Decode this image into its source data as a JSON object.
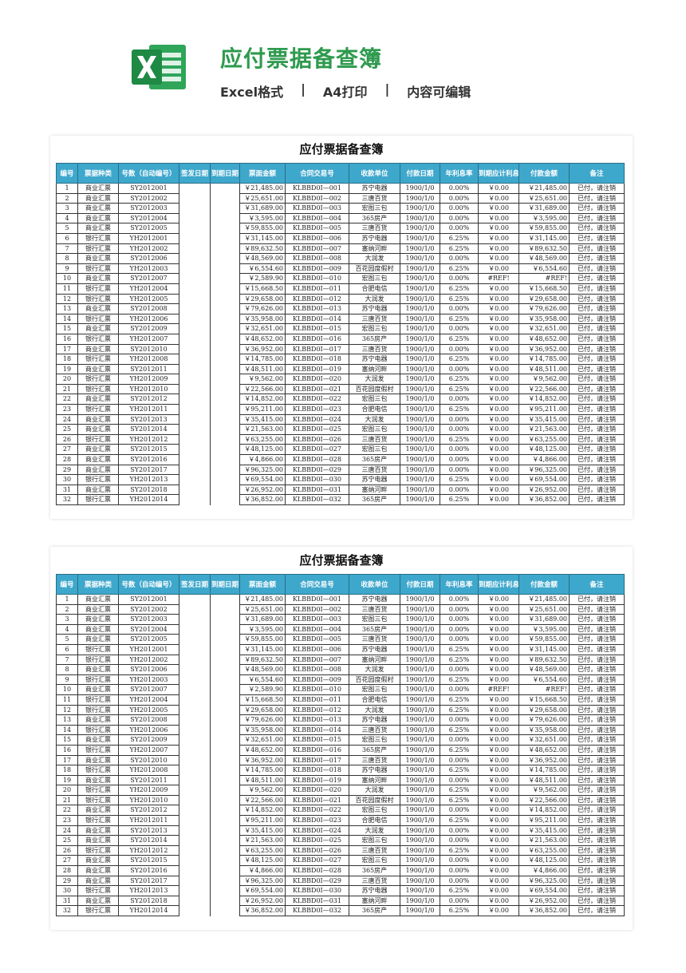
{
  "header": {
    "title": "应付票据备查簿",
    "subtitle": [
      "Excel格式",
      "|",
      "A4打印",
      "|",
      "内容可编辑"
    ]
  },
  "tables": [
    {
      "title": "应付票据备查簿",
      "headers": [
        "编号",
        "票据种类",
        "号数（自动编号）",
        "签发日期",
        "到期日期",
        "票面金额",
        "合同交易号",
        "收款单位",
        "付款日期",
        "年利息率",
        "到期应计利息",
        "付款金额",
        "备注"
      ],
      "rows": [
        [
          "1",
          "商业汇票",
          "SY2012001",
          "￥21,485.00",
          "KLBBD0I—001",
          "苏宁电器",
          "1900/1/0",
          "0.00%",
          "￥0.00",
          "￥21,485.00",
          "已付，请注销"
        ],
        [
          "2",
          "商业汇票",
          "SY2012002",
          "￥25,651.00",
          "KLBBD0I—002",
          "三唐百货",
          "1900/1/0",
          "0.00%",
          "￥0.00",
          "￥25,651.00",
          "已付，请注销"
        ],
        [
          "3",
          "商业汇票",
          "SY2012003",
          "￥31,689.00",
          "KLBBD0I—003",
          "宏图三包",
          "1900/1/0",
          "0.00%",
          "￥0.00",
          "￥31,689.00",
          "已付，请注销"
        ],
        [
          "4",
          "商业汇票",
          "SY2012004",
          "￥3,595.00",
          "KLBBD0I—004",
          "365房产",
          "1900/1/0",
          "0.00%",
          "￥0.00",
          "￥3,595.00",
          "已付，请注销"
        ],
        [
          "5",
          "商业汇票",
          "SY2012005",
          "￥59,855.00",
          "KLBBD0I—005",
          "三唐百货",
          "1900/1/0",
          "0.00%",
          "￥0.00",
          "￥59,855.00",
          "已付，请注销"
        ],
        [
          "6",
          "银行汇票",
          "YH2012001",
          "￥31,145.00",
          "KLBBD0I—006",
          "苏宁电器",
          "1900/1/0",
          "6.25%",
          "￥0.00",
          "￥31,145.00",
          "已付，请注销"
        ],
        [
          "7",
          "银行汇票",
          "YH2012002",
          "￥89,632.50",
          "KLBBD0I—007",
          "塞纳河畔",
          "1900/1/0",
          "6.25%",
          "￥0.00",
          "￥89,632.50",
          "已付，请注销"
        ],
        [
          "8",
          "商业汇票",
          "SY2012006",
          "￥48,569.00",
          "KLBBD0I—008",
          "大润发",
          "1900/1/0",
          "0.00%",
          "￥0.00",
          "￥48,569.00",
          "已付，请注销"
        ],
        [
          "9",
          "银行汇票",
          "YH2012003",
          "￥6,554.60",
          "KLBBD0I—009",
          "百花园度假村",
          "1900/1/0",
          "6.25%",
          "￥0.00",
          "￥6,554.60",
          "已付，请注销"
        ],
        [
          "10",
          "商业汇票",
          "SY2012007",
          "￥2,589.90",
          "KLBBD0I—010",
          "宏图三包",
          "1900/1/0",
          "0.00%",
          "#REF!",
          "#REF!",
          "已付，请注销"
        ],
        [
          "11",
          "银行汇票",
          "YH2012004",
          "￥15,668.50",
          "KLBBD0I—011",
          "合肥电信",
          "1900/1/0",
          "6.25%",
          "￥0.00",
          "￥15,668.50",
          "已付，请注销"
        ],
        [
          "12",
          "银行汇票",
          "YH2012005",
          "￥29,658.00",
          "KLBBD0I—012",
          "大润发",
          "1900/1/0",
          "6.25%",
          "￥0.00",
          "￥29,658.00",
          "已付，请注销"
        ],
        [
          "13",
          "商业汇票",
          "SY2012008",
          "￥79,626.00",
          "KLBBD0I—013",
          "苏宁电器",
          "1900/1/0",
          "0.00%",
          "￥0.00",
          "￥79,626.00",
          "已付，请注销"
        ],
        [
          "14",
          "银行汇票",
          "YH2012006",
          "￥35,958.00",
          "KLBBD0I—014",
          "三唐百货",
          "1900/1/0",
          "6.25%",
          "￥0.00",
          "￥35,958.00",
          "已付，请注销"
        ],
        [
          "15",
          "商业汇票",
          "SY2012009",
          "￥32,651.00",
          "KLBBD0I—015",
          "宏图三包",
          "1900/1/0",
          "0.00%",
          "￥0.00",
          "￥32,651.00",
          "已付，请注销"
        ],
        [
          "16",
          "银行汇票",
          "YH2012007",
          "￥48,652.00",
          "KLBBD0I—016",
          "365房产",
          "1900/1/0",
          "6.25%",
          "￥0.00",
          "￥48,652.00",
          "已付，请注销"
        ],
        [
          "17",
          "商业汇票",
          "SY2012010",
          "￥36,952.00",
          "KLBBD0I—017",
          "三唐百货",
          "1900/1/0",
          "0.00%",
          "￥0.00",
          "￥36,952.00",
          "已付，请注销"
        ],
        [
          "18",
          "银行汇票",
          "YH2012008",
          "￥14,785.00",
          "KLBBD0I—018",
          "苏宁电器",
          "1900/1/0",
          "6.25%",
          "￥0.00",
          "￥14,785.00",
          "已付，请注销"
        ],
        [
          "19",
          "商业汇票",
          "SY2012011",
          "￥48,511.00",
          "KLBBD0I—019",
          "塞纳河畔",
          "1900/1/0",
          "0.00%",
          "￥0.00",
          "￥48,511.00",
          "已付，请注销"
        ],
        [
          "20",
          "银行汇票",
          "YH2012009",
          "￥9,562.00",
          "KLBBD0I—020",
          "大润发",
          "1900/1/0",
          "6.25%",
          "￥0.00",
          "￥9,562.00",
          "已付，请注销"
        ],
        [
          "21",
          "银行汇票",
          "YH2012010",
          "￥22,566.00",
          "KLBBD0I—021",
          "百花园度假村",
          "1900/1/0",
          "6.25%",
          "￥0.00",
          "￥22,566.00",
          "已付，请注销"
        ],
        [
          "22",
          "商业汇票",
          "SY2012012",
          "￥14,852.00",
          "KLBBD0I—022",
          "宏图三包",
          "1900/1/0",
          "0.00%",
          "￥0.00",
          "￥14,852.00",
          "已付，请注销"
        ],
        [
          "23",
          "银行汇票",
          "YH2012011",
          "￥95,211.00",
          "KLBBD0I—023",
          "合肥电信",
          "1900/1/0",
          "6.25%",
          "￥0.00",
          "￥95,211.00",
          "已付，请注销"
        ],
        [
          "24",
          "商业汇票",
          "SY2012013",
          "￥35,415.00",
          "KLBBD0I—024",
          "大润发",
          "1900/1/0",
          "0.00%",
          "￥0.00",
          "￥35,415.00",
          "已付，请注销"
        ],
        [
          "25",
          "商业汇票",
          "SY2012014",
          "￥21,563.00",
          "KLBBD0I—025",
          "宏图三包",
          "1900/1/0",
          "0.00%",
          "￥0.00",
          "￥21,563.00",
          "已付，请注销"
        ],
        [
          "26",
          "银行汇票",
          "YH2012012",
          "￥63,255.00",
          "KLBBD0I—026",
          "三唐百货",
          "1900/1/0",
          "6.25%",
          "￥0.00",
          "￥63,255.00",
          "已付，请注销"
        ],
        [
          "27",
          "商业汇票",
          "SY2012015",
          "￥48,125.00",
          "KLBBD0I—027",
          "宏图三包",
          "1900/1/0",
          "0.00%",
          "￥0.00",
          "￥48,125.00",
          "已付，请注销"
        ],
        [
          "28",
          "商业汇票",
          "SY2012016",
          "￥4,866.00",
          "KLBBD0I—028",
          "365房产",
          "1900/1/0",
          "0.00%",
          "￥0.00",
          "￥4,866.00",
          "已付，请注销"
        ],
        [
          "29",
          "商业汇票",
          "SY2012017",
          "￥96,325.00",
          "KLBBD0I—029",
          "三唐百货",
          "1900/1/0",
          "0.00%",
          "￥0.00",
          "￥96,325.00",
          "已付，请注销"
        ],
        [
          "30",
          "银行汇票",
          "YH2012013",
          "￥69,554.00",
          "KLBBD0I—030",
          "苏宁电器",
          "1900/1/0",
          "6.25%",
          "￥0.00",
          "￥69,554.00",
          "已付，请注销"
        ],
        [
          "31",
          "商业汇票",
          "SY2012018",
          "￥26,952.00",
          "KLBBD0I—031",
          "塞纳河畔",
          "1900/1/0",
          "0.00%",
          "￥0.00",
          "￥26,952.00",
          "已付，请注销"
        ],
        [
          "32",
          "银行汇票",
          "YH2012014",
          "￥36,852.00",
          "KLBBD0I—032",
          "365房产",
          "1900/1/0",
          "6.25%",
          "￥0.00",
          "￥36,852.00",
          "已付，请注销"
        ]
      ]
    },
    {
      "title": "应付票据备查簿",
      "headers": [
        "编号",
        "票据种类",
        "号数（自动编号）",
        "签发日期",
        "到期日期",
        "票面金额",
        "合同交易号",
        "收款单位",
        "付款日期",
        "年利息率",
        "到期应计利息",
        "付款金额",
        "备注"
      ],
      "rows": [
        [
          "1",
          "商业汇票",
          "SY2012001",
          "￥21,485.00",
          "KLBBD0I—001",
          "苏宁电器",
          "1900/1/0",
          "0.00%",
          "￥0.00",
          "￥21,485.00",
          "已付，请注销"
        ],
        [
          "2",
          "商业汇票",
          "SY2012002",
          "￥25,651.00",
          "KLBBD0I—002",
          "三唐百货",
          "1900/1/0",
          "0.00%",
          "￥0.00",
          "￥25,651.00",
          "已付，请注销"
        ],
        [
          "3",
          "商业汇票",
          "SY2012003",
          "￥31,689.00",
          "KLBBD0I—003",
          "宏图三包",
          "1900/1/0",
          "0.00%",
          "￥0.00",
          "￥31,689.00",
          "已付，请注销"
        ],
        [
          "4",
          "商业汇票",
          "SY2012004",
          "￥3,595.00",
          "KLBBD0I—004",
          "365房产",
          "1900/1/0",
          "0.00%",
          "￥0.00",
          "￥3,595.00",
          "已付，请注销"
        ],
        [
          "5",
          "商业汇票",
          "SY2012005",
          "￥59,855.00",
          "KLBBD0I—005",
          "三唐百货",
          "1900/1/0",
          "0.00%",
          "￥0.00",
          "￥59,855.00",
          "已付，请注销"
        ],
        [
          "6",
          "银行汇票",
          "YH2012001",
          "￥31,145.00",
          "KLBBD0I—006",
          "苏宁电器",
          "1900/1/0",
          "6.25%",
          "￥0.00",
          "￥31,145.00",
          "已付，请注销"
        ],
        [
          "7",
          "银行汇票",
          "YH2012002",
          "￥89,632.50",
          "KLBBD0I—007",
          "塞纳河畔",
          "1900/1/0",
          "6.25%",
          "￥0.00",
          "￥89,632.50",
          "已付，请注销"
        ],
        [
          "8",
          "商业汇票",
          "SY2012006",
          "￥48,569.00",
          "KLBBD0I—008",
          "大润发",
          "1900/1/0",
          "0.00%",
          "￥0.00",
          "￥48,569.00",
          "已付，请注销"
        ],
        [
          "9",
          "银行汇票",
          "YH2012003",
          "￥6,554.60",
          "KLBBD0I—009",
          "百花园度假村",
          "1900/1/0",
          "6.25%",
          "￥0.00",
          "￥6,554.60",
          "已付，请注销"
        ],
        [
          "10",
          "商业汇票",
          "SY2012007",
          "￥2,589.90",
          "KLBBD0I—010",
          "宏图三包",
          "1900/1/0",
          "0.00%",
          "#REF!",
          "#REF!",
          "已付，请注销"
        ],
        [
          "11",
          "银行汇票",
          "YH2012004",
          "￥15,668.50",
          "KLBBD0I—011",
          "合肥电信",
          "1900/1/0",
          "6.25%",
          "￥0.00",
          "￥15,668.50",
          "已付，请注销"
        ],
        [
          "12",
          "银行汇票",
          "YH2012005",
          "￥29,658.00",
          "KLBBD0I—012",
          "大润发",
          "1900/1/0",
          "6.25%",
          "￥0.00",
          "￥29,658.00",
          "已付，请注销"
        ],
        [
          "13",
          "商业汇票",
          "SY2012008",
          "￥79,626.00",
          "KLBBD0I—013",
          "苏宁电器",
          "1900/1/0",
          "0.00%",
          "￥0.00",
          "￥79,626.00",
          "已付，请注销"
        ],
        [
          "14",
          "银行汇票",
          "YH2012006",
          "￥35,958.00",
          "KLBBD0I—014",
          "三唐百货",
          "1900/1/0",
          "6.25%",
          "￥0.00",
          "￥35,958.00",
          "已付，请注销"
        ],
        [
          "15",
          "商业汇票",
          "SY2012009",
          "￥32,651.00",
          "KLBBD0I—015",
          "宏图三包",
          "1900/1/0",
          "0.00%",
          "￥0.00",
          "￥32,651.00",
          "已付，请注销"
        ],
        [
          "16",
          "银行汇票",
          "YH2012007",
          "￥48,652.00",
          "KLBBD0I—016",
          "365房产",
          "1900/1/0",
          "6.25%",
          "￥0.00",
          "￥48,652.00",
          "已付，请注销"
        ],
        [
          "17",
          "商业汇票",
          "SY2012010",
          "￥36,952.00",
          "KLBBD0I—017",
          "三唐百货",
          "1900/1/0",
          "0.00%",
          "￥0.00",
          "￥36,952.00",
          "已付，请注销"
        ],
        [
          "18",
          "银行汇票",
          "YH2012008",
          "￥14,785.00",
          "KLBBD0I—018",
          "苏宁电器",
          "1900/1/0",
          "6.25%",
          "￥0.00",
          "￥14,785.00",
          "已付，请注销"
        ],
        [
          "19",
          "商业汇票",
          "SY2012011",
          "￥48,511.00",
          "KLBBD0I—019",
          "塞纳河畔",
          "1900/1/0",
          "0.00%",
          "￥0.00",
          "￥48,511.00",
          "已付，请注销"
        ],
        [
          "20",
          "银行汇票",
          "YH2012009",
          "￥9,562.00",
          "KLBBD0I—020",
          "大润发",
          "1900/1/0",
          "6.25%",
          "￥0.00",
          "￥9,562.00",
          "已付，请注销"
        ],
        [
          "21",
          "银行汇票",
          "YH2012010",
          "￥22,566.00",
          "KLBBD0I—021",
          "百花园度假村",
          "1900/1/0",
          "6.25%",
          "￥0.00",
          "￥22,566.00",
          "已付，请注销"
        ],
        [
          "22",
          "商业汇票",
          "SY2012012",
          "￥14,852.00",
          "KLBBD0I—022",
          "宏图三包",
          "1900/1/0",
          "0.00%",
          "￥0.00",
          "￥14,852.00",
          "已付，请注销"
        ],
        [
          "23",
          "银行汇票",
          "YH2012011",
          "￥95,211.00",
          "KLBBD0I—023",
          "合肥电信",
          "1900/1/0",
          "6.25%",
          "￥0.00",
          "￥95,211.00",
          "已付，请注销"
        ],
        [
          "24",
          "商业汇票",
          "SY2012013",
          "￥35,415.00",
          "KLBBD0I—024",
          "大润发",
          "1900/1/0",
          "0.00%",
          "￥0.00",
          "￥35,415.00",
          "已付，请注销"
        ],
        [
          "25",
          "商业汇票",
          "SY2012014",
          "￥21,563.00",
          "KLBBD0I—025",
          "宏图三包",
          "1900/1/0",
          "0.00%",
          "￥0.00",
          "￥21,563.00",
          "已付，请注销"
        ],
        [
          "26",
          "银行汇票",
          "YH2012012",
          "￥63,255.00",
          "KLBBD0I—026",
          "三唐百货",
          "1900/1/0",
          "6.25%",
          "￥0.00",
          "￥63,255.00",
          "已付，请注销"
        ],
        [
          "27",
          "商业汇票",
          "SY2012015",
          "￥48,125.00",
          "KLBBD0I—027",
          "宏图三包",
          "1900/1/0",
          "0.00%",
          "￥0.00",
          "￥48,125.00",
          "已付，请注销"
        ],
        [
          "28",
          "商业汇票",
          "SY2012016",
          "￥4,866.00",
          "KLBBD0I—028",
          "365房产",
          "1900/1/0",
          "0.00%",
          "￥0.00",
          "￥4,866.00",
          "已付，请注销"
        ],
        [
          "29",
          "商业汇票",
          "SY2012017",
          "￥96,325.00",
          "KLBBD0I—029",
          "三唐百货",
          "1900/1/0",
          "0.00%",
          "￥0.00",
          "￥96,325.00",
          "已付，请注销"
        ],
        [
          "30",
          "银行汇票",
          "YH2012013",
          "￥69,554.00",
          "KLBBD0I—030",
          "苏宁电器",
          "1900/1/0",
          "6.25%",
          "￥0.00",
          "￥69,554.00",
          "已付，请注销"
        ],
        [
          "31",
          "商业汇票",
          "SY2012018",
          "￥26,952.00",
          "KLBBD0I—031",
          "塞纳河畔",
          "1900/1/0",
          "0.00%",
          "￥0.00",
          "￥26,952.00",
          "已付，请注销"
        ],
        [
          "32",
          "银行汇票",
          "YH2012014",
          "￥36,852.00",
          "KLBBD0I—032",
          "365房产",
          "1900/1/0",
          "6.25%",
          "￥0.00",
          "￥36,852.00",
          "已付，请注销"
        ]
      ]
    }
  ]
}
